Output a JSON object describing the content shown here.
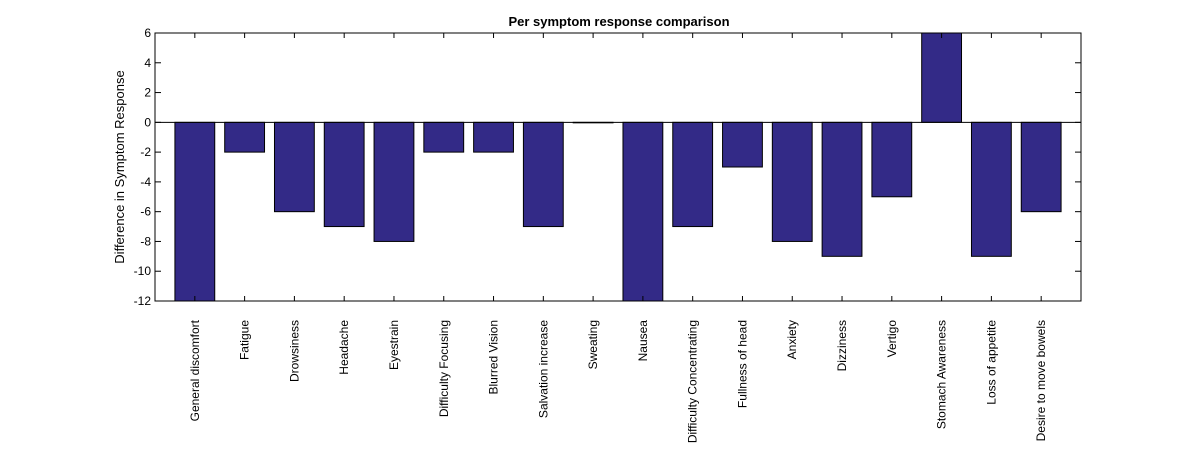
{
  "chart_data": {
    "type": "bar",
    "title": "Per symptom response comparison",
    "xlabel": "",
    "ylabel": "Difference in Symptom Response",
    "ylim": [
      -12,
      6
    ],
    "yticks": [
      6,
      4,
      2,
      0,
      -2,
      -4,
      -6,
      -8,
      -10,
      -12
    ],
    "grid": false,
    "bar_color": "#332a87",
    "categories": [
      "General discomfort",
      "Fatigue",
      "Drowsiness",
      "Headache",
      "Eyestrain",
      "Difficulty Focusing",
      "Blurred Vision",
      "Salvation increase",
      "Sweating",
      "Nausea",
      "Difficulty Concentrating",
      "Fullness of head",
      "Anxiety",
      "Dizziness",
      "Vertigo",
      "Stomach Awareness",
      "Loss of appetite",
      "Desire to move bowels"
    ],
    "values": [
      -12,
      -2,
      -6,
      -7,
      -8,
      -2,
      -2,
      -7,
      0,
      -12,
      -7,
      -3,
      -8,
      -9,
      -5,
      6,
      -9,
      -6
    ]
  }
}
